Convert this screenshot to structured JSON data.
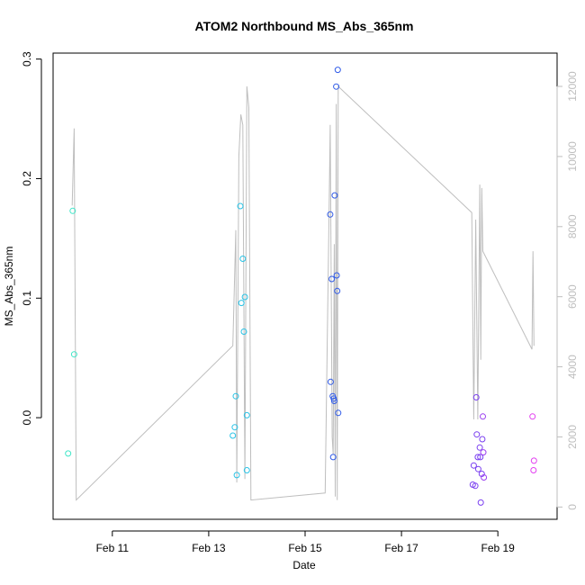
{
  "chart_data": {
    "type": "scatter",
    "title": "ATOM2 Northbound MS_Abs_365nm",
    "xlabel": "Date",
    "ylabel": "MS_Abs_365nm",
    "x_unit": "date",
    "xlim": [
      "2023-02-09T18:30",
      "2023-02-20T05:30"
    ],
    "ylim": [
      -0.085,
      0.305
    ],
    "y2lim": [
      -350,
      12950
    ],
    "x_ticks": [
      {
        "value": "2023-02-11T00:00",
        "label": "Feb 11"
      },
      {
        "value": "2023-02-13T00:00",
        "label": "Feb 13"
      },
      {
        "value": "2023-02-15T00:00",
        "label": "Feb 15"
      },
      {
        "value": "2023-02-17T00:00",
        "label": "Feb 17"
      },
      {
        "value": "2023-02-19T00:00",
        "label": "Feb 19"
      }
    ],
    "y_ticks": [
      {
        "value": 0.0,
        "label": "0.0"
      },
      {
        "value": 0.1,
        "label": "0.1"
      },
      {
        "value": 0.2,
        "label": "0.2"
      },
      {
        "value": 0.3,
        "label": "0.3"
      }
    ],
    "y2_ticks": [
      {
        "value": 0,
        "label": "0"
      },
      {
        "value": 2000,
        "label": "2000"
      },
      {
        "value": 4000,
        "label": "4000"
      },
      {
        "value": 6000,
        "label": "6000"
      },
      {
        "value": 8000,
        "label": "8000"
      },
      {
        "value": 10000,
        "label": "10000"
      },
      {
        "value": 12000,
        "label": "12000"
      }
    ],
    "grid": false,
    "secondary_line_color": "#bebebe",
    "series": [
      {
        "color": "#3fe6c8",
        "points": [
          {
            "x": "2023-02-10T02:00",
            "y": -0.03
          },
          {
            "x": "2023-02-10T04:15",
            "y": 0.173
          },
          {
            "x": "2023-02-10T05:00",
            "y": 0.053
          }
        ]
      },
      {
        "color": "#29c3e6",
        "points": [
          {
            "x": "2023-02-13T12:00",
            "y": -0.015
          },
          {
            "x": "2023-02-13T13:00",
            "y": -0.008
          },
          {
            "x": "2023-02-13T13:30",
            "y": 0.018
          },
          {
            "x": "2023-02-13T14:00",
            "y": -0.048
          },
          {
            "x": "2023-02-13T15:45",
            "y": 0.177
          },
          {
            "x": "2023-02-13T16:15",
            "y": 0.096
          },
          {
            "x": "2023-02-13T17:00",
            "y": 0.133
          },
          {
            "x": "2023-02-13T17:30",
            "y": 0.072
          },
          {
            "x": "2023-02-13T18:00",
            "y": 0.101
          },
          {
            "x": "2023-02-13T19:00",
            "y": 0.002
          },
          {
            "x": "2023-02-13T19:00",
            "y": -0.044
          }
        ]
      },
      {
        "color": "#2f5ae8",
        "points": [
          {
            "x": "2023-02-15T12:30",
            "y": 0.17
          },
          {
            "x": "2023-02-15T12:45",
            "y": 0.03
          },
          {
            "x": "2023-02-15T13:15",
            "y": 0.116
          },
          {
            "x": "2023-02-15T13:45",
            "y": 0.018
          },
          {
            "x": "2023-02-15T14:00",
            "y": -0.033
          },
          {
            "x": "2023-02-15T14:15",
            "y": 0.016
          },
          {
            "x": "2023-02-15T14:30",
            "y": 0.014
          },
          {
            "x": "2023-02-15T14:45",
            "y": 0.186
          },
          {
            "x": "2023-02-15T15:30",
            "y": 0.277
          },
          {
            "x": "2023-02-15T15:45",
            "y": 0.119
          },
          {
            "x": "2023-02-15T16:00",
            "y": 0.106
          },
          {
            "x": "2023-02-15T16:15",
            "y": 0.291
          },
          {
            "x": "2023-02-15T16:30",
            "y": 0.004
          }
        ]
      },
      {
        "color": "#7a3ff0",
        "points": [
          {
            "x": "2023-02-18T11:30",
            "y": -0.056
          },
          {
            "x": "2023-02-18T12:00",
            "y": -0.04
          },
          {
            "x": "2023-02-18T12:45",
            "y": -0.057
          },
          {
            "x": "2023-02-18T13:15",
            "y": 0.017
          },
          {
            "x": "2023-02-18T13:30",
            "y": -0.014
          },
          {
            "x": "2023-02-18T14:00",
            "y": -0.033
          },
          {
            "x": "2023-02-18T14:15",
            "y": -0.043
          },
          {
            "x": "2023-02-18T15:00",
            "y": -0.025
          },
          {
            "x": "2023-02-18T15:15",
            "y": -0.033
          },
          {
            "x": "2023-02-18T15:30",
            "y": -0.071
          },
          {
            "x": "2023-02-18T16:00",
            "y": -0.047
          },
          {
            "x": "2023-02-18T16:15",
            "y": -0.018
          }
        ]
      },
      {
        "color": "#9b3ff0",
        "points": [
          {
            "x": "2023-02-18T16:30",
            "y": 0.001
          },
          {
            "x": "2023-02-18T16:45",
            "y": -0.029
          },
          {
            "x": "2023-02-18T17:00",
            "y": -0.05
          }
        ]
      },
      {
        "color": "#e23ff0",
        "points": [
          {
            "x": "2023-02-19T17:15",
            "y": 0.001
          },
          {
            "x": "2023-02-19T17:45",
            "y": -0.044
          },
          {
            "x": "2023-02-19T18:00",
            "y": -0.036
          }
        ]
      }
    ],
    "secondary_line": [
      {
        "x": "2023-02-10T04:00",
        "y2": 8600
      },
      {
        "x": "2023-02-10T05:00",
        "y2": 10800
      },
      {
        "x": "2023-02-10T06:00",
        "y2": 200
      },
      {
        "x": "2023-02-13T12:00",
        "y2": 4600
      },
      {
        "x": "2023-02-13T13:00",
        "y2": 6800
      },
      {
        "x": "2023-02-13T13:30",
        "y2": 7900
      },
      {
        "x": "2023-02-13T14:00",
        "y2": 700
      },
      {
        "x": "2023-02-13T15:00",
        "y2": 10000
      },
      {
        "x": "2023-02-13T16:00",
        "y2": 11200
      },
      {
        "x": "2023-02-13T17:00",
        "y2": 10900
      },
      {
        "x": "2023-02-13T18:00",
        "y2": 800
      },
      {
        "x": "2023-02-13T19:00",
        "y2": 12000
      },
      {
        "x": "2023-02-13T20:00",
        "y2": 11400
      },
      {
        "x": "2023-02-13T21:00",
        "y2": 200
      },
      {
        "x": "2023-02-15T10:00",
        "y2": 400
      },
      {
        "x": "2023-02-15T11:00",
        "y2": 4500
      },
      {
        "x": "2023-02-15T12:00",
        "y2": 8700
      },
      {
        "x": "2023-02-15T12:30",
        "y2": 10900
      },
      {
        "x": "2023-02-15T13:30",
        "y2": 2000
      },
      {
        "x": "2023-02-15T14:00",
        "y2": 1500
      },
      {
        "x": "2023-02-15T14:30",
        "y2": 7500
      },
      {
        "x": "2023-02-15T15:00",
        "y2": 300
      },
      {
        "x": "2023-02-15T15:30",
        "y2": 11500
      },
      {
        "x": "2023-02-15T16:00",
        "y2": 200
      },
      {
        "x": "2023-02-15T16:30",
        "y2": 12000
      },
      {
        "x": "2023-02-18T11:00",
        "y2": 8400
      },
      {
        "x": "2023-02-18T12:00",
        "y2": 2500
      },
      {
        "x": "2023-02-18T13:00",
        "y2": 8200
      },
      {
        "x": "2023-02-18T14:00",
        "y2": 2500
      },
      {
        "x": "2023-02-18T15:00",
        "y2": 9200
      },
      {
        "x": "2023-02-18T15:30",
        "y2": 4200
      },
      {
        "x": "2023-02-18T16:00",
        "y2": 9100
      },
      {
        "x": "2023-02-18T16:30",
        "y2": 7300
      },
      {
        "x": "2023-02-19T17:00",
        "y2": 4500
      },
      {
        "x": "2023-02-19T17:30",
        "y2": 7300
      },
      {
        "x": "2023-02-19T18:00",
        "y2": 4600
      }
    ]
  }
}
